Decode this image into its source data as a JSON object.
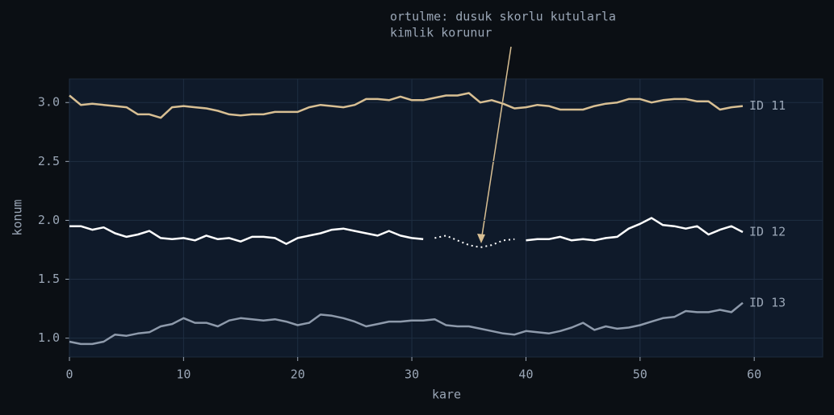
{
  "chart_data": {
    "type": "line",
    "xlabel": "kare",
    "ylabel": "konum",
    "xlim": [
      0,
      66
    ],
    "ylim": [
      0.84,
      3.2
    ],
    "xticks": [
      0,
      10,
      20,
      30,
      40,
      50,
      60
    ],
    "yticks": [
      {
        "value": 1,
        "label": "1.0"
      },
      {
        "value": 1.5,
        "label": "1.5"
      },
      {
        "value": 2,
        "label": "2.0"
      },
      {
        "value": 2.5,
        "label": "2.5"
      },
      {
        "value": 3,
        "label": "3.0"
      }
    ],
    "grid": true,
    "x": [
      0,
      1,
      2,
      3,
      4,
      5,
      6,
      7,
      8,
      9,
      10,
      11,
      12,
      13,
      14,
      15,
      16,
      17,
      18,
      19,
      20,
      21,
      22,
      23,
      24,
      25,
      26,
      27,
      28,
      29,
      30,
      31,
      32,
      33,
      34,
      35,
      36,
      37,
      38,
      39,
      40,
      41,
      42,
      43,
      44,
      45,
      46,
      47,
      48,
      49,
      50,
      51,
      52,
      53,
      54,
      55,
      56,
      57,
      58,
      59
    ],
    "series": [
      {
        "name": "ID 11",
        "color": "#d8bf93",
        "values": [
          3.06,
          2.98,
          2.99,
          2.98,
          2.97,
          2.96,
          2.9,
          2.9,
          2.87,
          2.96,
          2.97,
          2.96,
          2.95,
          2.93,
          2.9,
          2.89,
          2.9,
          2.9,
          2.92,
          2.92,
          2.92,
          2.96,
          2.98,
          2.97,
          2.96,
          2.98,
          3.03,
          3.03,
          3.02,
          3.05,
          3.02,
          3.02,
          3.04,
          3.06,
          3.06,
          3.08,
          3.0,
          3.02,
          2.99,
          2.95,
          2.96,
          2.98,
          2.97,
          2.94,
          2.94,
          2.94,
          2.97,
          2.99,
          3.0,
          3.03,
          3.03,
          3.0,
          3.02,
          3.03,
          3.03,
          3.01,
          3.01,
          2.94,
          2.96,
          2.97
        ]
      },
      {
        "name": "ID 12",
        "color": "#ffffff",
        "values": [
          1.95,
          1.95,
          1.92,
          1.94,
          1.89,
          1.86,
          1.88,
          1.91,
          1.85,
          1.84,
          1.85,
          1.83,
          1.87,
          1.84,
          1.85,
          1.82,
          1.86,
          1.86,
          1.85,
          1.8,
          1.85,
          1.87,
          1.89,
          1.92,
          1.93,
          1.91,
          1.89,
          1.87,
          1.91,
          1.87,
          1.85,
          1.84,
          null,
          null,
          null,
          null,
          null,
          null,
          null,
          null,
          1.83,
          1.84,
          1.84,
          1.86,
          1.83,
          1.84,
          1.83,
          1.85,
          1.86,
          1.93,
          1.97,
          2.02,
          1.96,
          1.95,
          1.93,
          1.95,
          1.88,
          1.92,
          1.95,
          1.9
        ],
        "occluded": [
          null,
          null,
          null,
          null,
          null,
          null,
          null,
          null,
          null,
          null,
          null,
          null,
          null,
          null,
          null,
          null,
          null,
          null,
          null,
          null,
          null,
          null,
          null,
          null,
          null,
          null,
          null,
          null,
          null,
          null,
          null,
          null,
          1.85,
          1.87,
          1.83,
          1.79,
          1.77,
          1.79,
          1.83,
          1.84,
          null,
          null,
          null,
          null,
          null,
          null,
          null,
          null,
          null,
          null,
          null,
          null,
          null,
          null,
          null,
          null,
          null,
          null,
          null,
          null
        ]
      },
      {
        "name": "ID 13",
        "color": "#8e9aab",
        "values": [
          0.97,
          0.95,
          0.95,
          0.97,
          1.03,
          1.02,
          1.04,
          1.05,
          1.1,
          1.12,
          1.17,
          1.13,
          1.13,
          1.1,
          1.15,
          1.17,
          1.16,
          1.15,
          1.16,
          1.14,
          1.11,
          1.13,
          1.2,
          1.19,
          1.17,
          1.14,
          1.1,
          1.12,
          1.14,
          1.14,
          1.15,
          1.15,
          1.16,
          1.11,
          1.1,
          1.1,
          1.08,
          1.06,
          1.04,
          1.03,
          1.06,
          1.05,
          1.04,
          1.06,
          1.09,
          1.13,
          1.07,
          1.1,
          1.08,
          1.09,
          1.11,
          1.14,
          1.17,
          1.18,
          1.23,
          1.22,
          1.22,
          1.24,
          1.22,
          1.3
        ]
      }
    ],
    "annotation": {
      "lines": [
        "ortulme: dusuk skorlu kutularla",
        "kimlik korunur"
      ],
      "color": "#d8bf93"
    }
  }
}
